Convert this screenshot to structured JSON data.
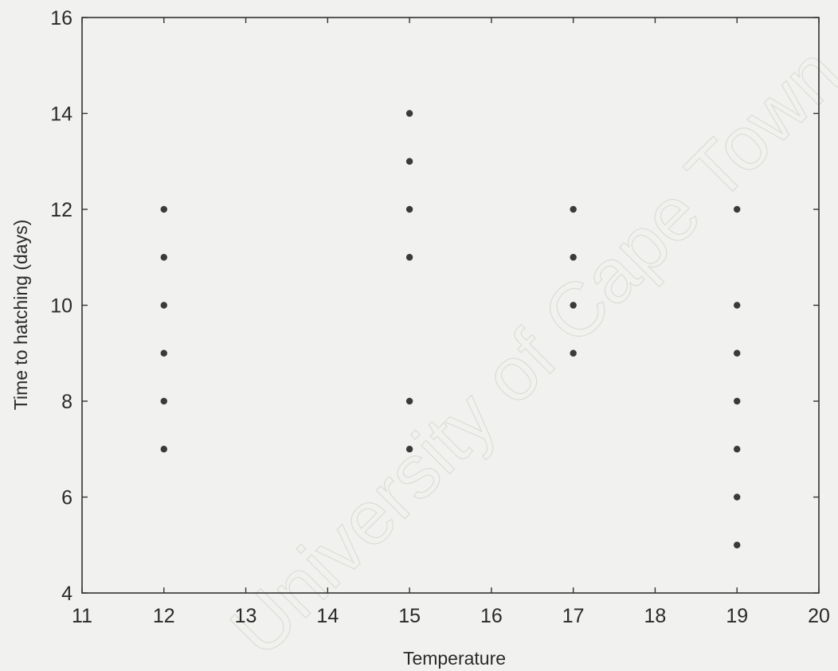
{
  "chart_data": {
    "type": "scatter",
    "title": "",
    "xlabel": "Temperature",
    "ylabel": "Time to hatching (days)",
    "xlim": [
      11,
      20
    ],
    "ylim": [
      4,
      16
    ],
    "xticks": [
      11,
      12,
      13,
      14,
      15,
      16,
      17,
      18,
      19,
      20
    ],
    "yticks": [
      4,
      6,
      8,
      10,
      12,
      14,
      16
    ],
    "grid": false,
    "series": [
      {
        "points": [
          {
            "x": 12,
            "y": 7
          },
          {
            "x": 12,
            "y": 8
          },
          {
            "x": 12,
            "y": 9
          },
          {
            "x": 12,
            "y": 10
          },
          {
            "x": 12,
            "y": 11
          },
          {
            "x": 12,
            "y": 12
          },
          {
            "x": 15,
            "y": 7
          },
          {
            "x": 15,
            "y": 8
          },
          {
            "x": 15,
            "y": 11
          },
          {
            "x": 15,
            "y": 12
          },
          {
            "x": 15,
            "y": 13
          },
          {
            "x": 15,
            "y": 14
          },
          {
            "x": 17,
            "y": 9
          },
          {
            "x": 17,
            "y": 10
          },
          {
            "x": 17,
            "y": 11
          },
          {
            "x": 17,
            "y": 12
          },
          {
            "x": 19,
            "y": 5
          },
          {
            "x": 19,
            "y": 6
          },
          {
            "x": 19,
            "y": 7
          },
          {
            "x": 19,
            "y": 8
          },
          {
            "x": 19,
            "y": 9
          },
          {
            "x": 19,
            "y": 10
          },
          {
            "x": 19,
            "y": 12
          }
        ],
        "color": "#3a3a3a"
      }
    ]
  },
  "watermark": {
    "text": "University of Cape Town"
  }
}
